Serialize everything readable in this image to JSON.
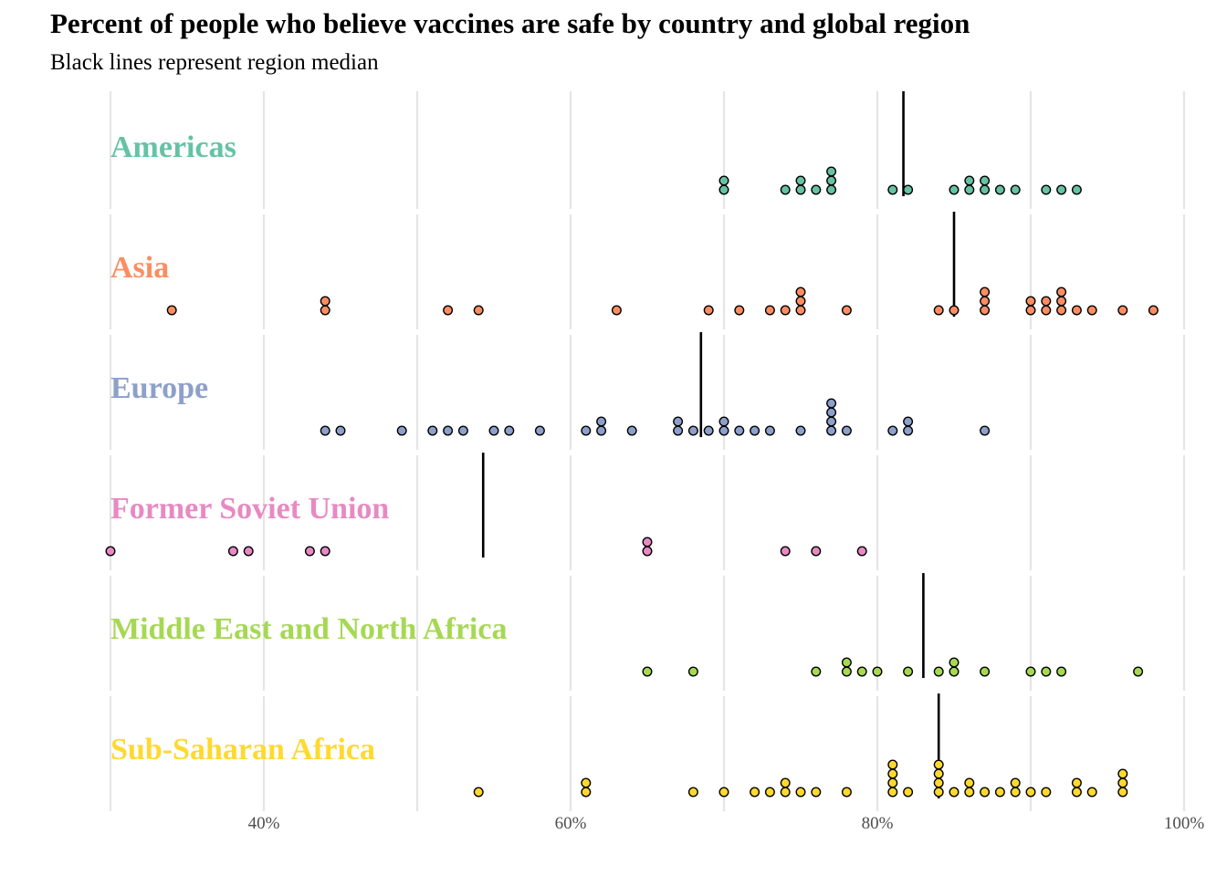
{
  "chart_data": {
    "type": "scatter",
    "subtype": "dotplot",
    "title": "Percent of people who believe vaccines are safe by country and global region",
    "subtitle": "Black lines represent region median",
    "xlabel": "",
    "ylabel": "",
    "xlim": [
      30,
      100
    ],
    "x_ticks": [
      40,
      60,
      80,
      100
    ],
    "x_tick_labels": [
      "40%",
      "60%",
      "80%",
      "100%"
    ],
    "grid": true,
    "legend": "none",
    "series": [
      {
        "name": "Americas",
        "color": "#66c2a5",
        "median": 81.7,
        "values": [
          70,
          70,
          74,
          75,
          75,
          76,
          77,
          77,
          77,
          81,
          82,
          85,
          86,
          86,
          87,
          87,
          88,
          89,
          91,
          92,
          93
        ]
      },
      {
        "name": "Asia",
        "color": "#fc8d62",
        "median": 85,
        "values": [
          34,
          44,
          44,
          52,
          54,
          63,
          69,
          71,
          73,
          74,
          75,
          75,
          75,
          78,
          84,
          85,
          87,
          87,
          87,
          90,
          90,
          91,
          91,
          92,
          92,
          92,
          93,
          94,
          96,
          98
        ]
      },
      {
        "name": "Europe",
        "color": "#8da0cb",
        "median": 68.5,
        "values": [
          44,
          45,
          49,
          51,
          52,
          53,
          55,
          56,
          58,
          61,
          62,
          62,
          64,
          67,
          67,
          68,
          69,
          70,
          70,
          71,
          72,
          73,
          75,
          77,
          77,
          77,
          77,
          78,
          81,
          82,
          82,
          87
        ]
      },
      {
        "name": "Former Soviet Union",
        "color": "#e78ac3",
        "median": 54.3,
        "values": [
          30,
          38,
          39,
          43,
          44,
          65,
          65,
          74,
          76,
          79
        ]
      },
      {
        "name": "Middle East and North Africa",
        "color": "#a6d854",
        "median": 83,
        "values": [
          65,
          68,
          76,
          78,
          78,
          79,
          80,
          82,
          84,
          85,
          85,
          87,
          90,
          91,
          92,
          97
        ]
      },
      {
        "name": "Sub-Saharan Africa",
        "color": "#ffd92f",
        "median": 84,
        "values": [
          54,
          61,
          61,
          68,
          70,
          72,
          73,
          74,
          74,
          75,
          76,
          78,
          81,
          81,
          81,
          81,
          82,
          84,
          84,
          84,
          84,
          85,
          86,
          86,
          87,
          88,
          89,
          89,
          90,
          91,
          93,
          93,
          94,
          96,
          96,
          96
        ]
      }
    ]
  }
}
